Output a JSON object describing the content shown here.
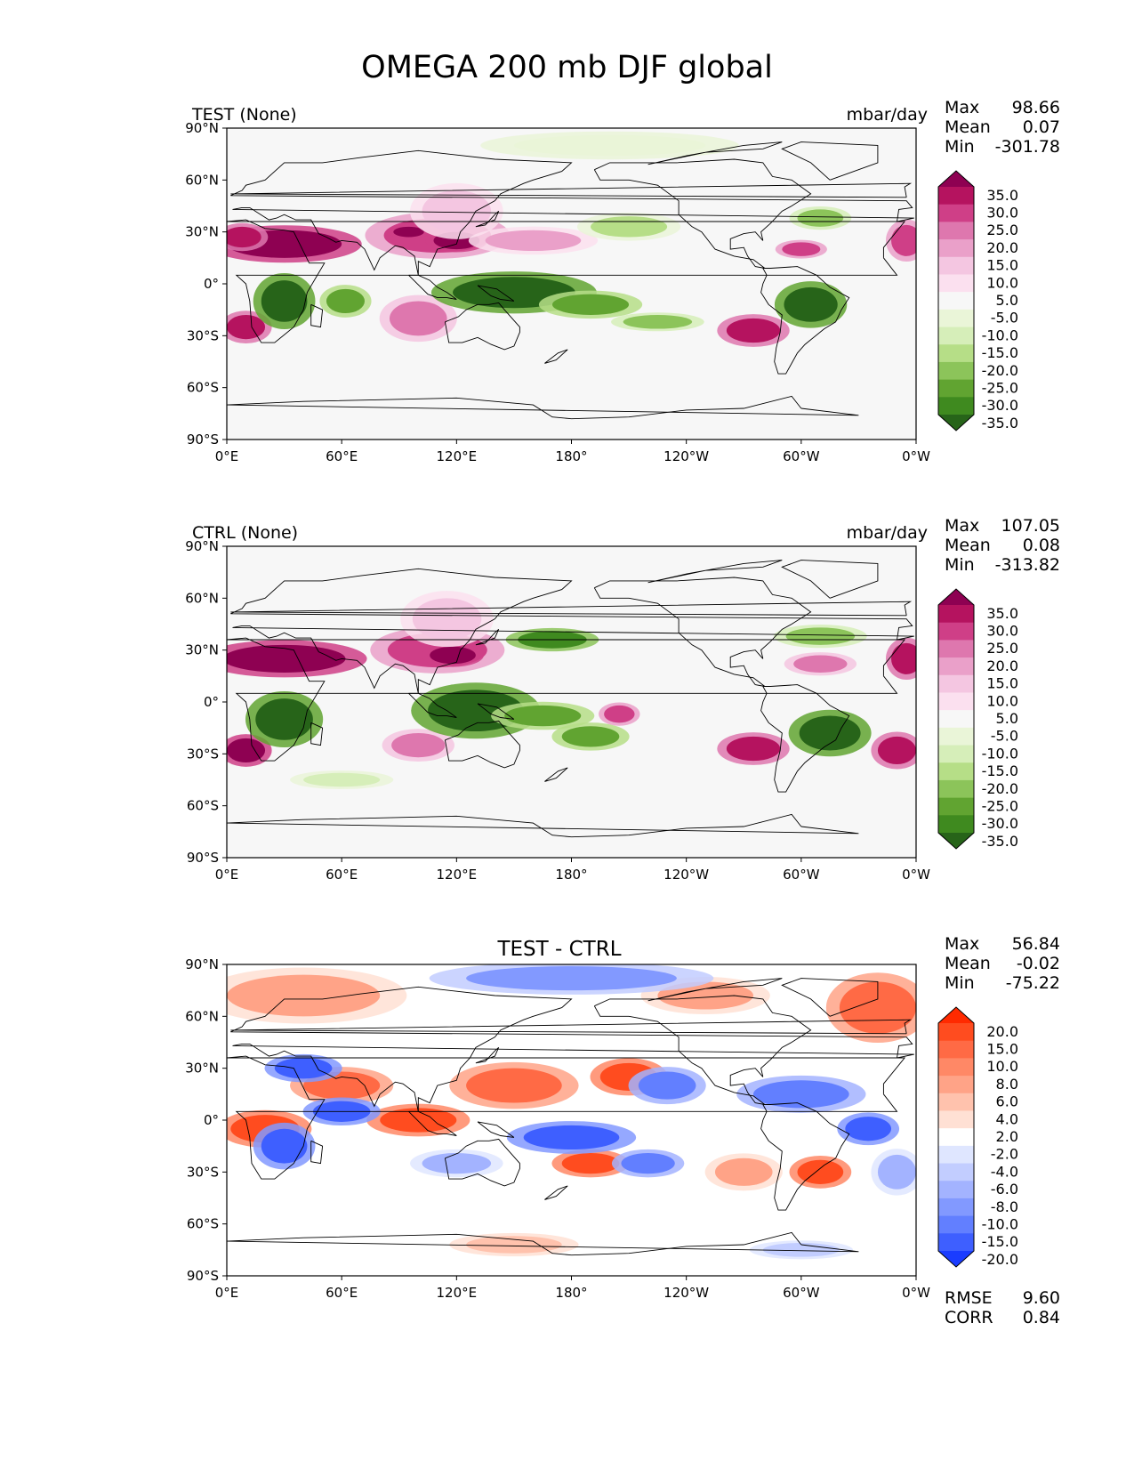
{
  "figure_title": "OMEGA 200 mb DJF global",
  "chart_data": [
    {
      "type": "heatmap",
      "title_left": "TEST (None)",
      "units": "mbar/day",
      "stats": [
        {
          "label": "Max",
          "value": "98.66"
        },
        {
          "label": "Mean",
          "value": "0.07"
        },
        {
          "label": "Min",
          "value": "-301.78"
        }
      ],
      "colorbar": {
        "levels": [
          "35.0",
          "30.0",
          "25.0",
          "20.0",
          "15.0",
          "10.0",
          "5.0",
          "-5.0",
          "-10.0",
          "-15.0",
          "-20.0",
          "-25.0",
          "-30.0",
          "-35.0"
        ],
        "colors": [
          "#8e0152",
          "#b5135f",
          "#cf3f87",
          "#de77ae",
          "#eaa0c9",
          "#f4c6e1",
          "#fbe0ef",
          "#f7f7f7",
          "#eaf5d8",
          "#d6eeb9",
          "#b6de87",
          "#8cc45a",
          "#61a431",
          "#3f8a1f",
          "#276419"
        ]
      },
      "ylim": [
        -90,
        90
      ],
      "xlim": [
        0,
        360
      ],
      "yticks": [
        "90°N",
        "60°N",
        "30°N",
        "0°",
        "30°S",
        "60°S",
        "90°S"
      ],
      "xticks": [
        "0°E",
        "60°E",
        "120°E",
        "180°",
        "120°W",
        "60°W",
        "0°W"
      ],
      "background": "#f7f7f7",
      "blobs": [
        {
          "lon": 30,
          "lat": 23,
          "rx": 30,
          "ry": 8,
          "level": 0
        },
        {
          "lon": 8,
          "lat": 27,
          "rx": 10,
          "ry": 6,
          "level": 1
        },
        {
          "lon": 110,
          "lat": 28,
          "rx": 28,
          "ry": 10,
          "level": 2
        },
        {
          "lon": 120,
          "lat": 25,
          "rx": 12,
          "ry": 5,
          "level": 0
        },
        {
          "lon": 95,
          "lat": 30,
          "rx": 8,
          "ry": 3,
          "level": 0
        },
        {
          "lon": 120,
          "lat": 42,
          "rx": 18,
          "ry": 12,
          "level": 5
        },
        {
          "lon": 160,
          "lat": 25,
          "rx": 25,
          "ry": 6,
          "level": 4
        },
        {
          "lon": 10,
          "lat": -25,
          "rx": 10,
          "ry": 7,
          "level": 1
        },
        {
          "lon": 100,
          "lat": -20,
          "rx": 15,
          "ry": 10,
          "level": 3
        },
        {
          "lon": 275,
          "lat": -27,
          "rx": 14,
          "ry": 7,
          "level": 1
        },
        {
          "lon": 300,
          "lat": 20,
          "rx": 10,
          "ry": 4,
          "level": 2
        },
        {
          "lon": 355,
          "lat": 25,
          "rx": 8,
          "ry": 9,
          "level": 2
        },
        {
          "lon": 30,
          "lat": -10,
          "rx": 12,
          "ry": 12,
          "level": 14
        },
        {
          "lon": 62,
          "lat": -10,
          "rx": 10,
          "ry": 7,
          "level": 12
        },
        {
          "lon": 150,
          "lat": -5,
          "rx": 32,
          "ry": 9,
          "level": 14
        },
        {
          "lon": 190,
          "lat": -12,
          "rx": 20,
          "ry": 6,
          "level": 12
        },
        {
          "lon": 225,
          "lat": -22,
          "rx": 18,
          "ry": 4,
          "level": 11
        },
        {
          "lon": 305,
          "lat": -12,
          "rx": 14,
          "ry": 10,
          "level": 14
        },
        {
          "lon": 210,
          "lat": 33,
          "rx": 20,
          "ry": 6,
          "level": 10
        },
        {
          "lon": 310,
          "lat": 38,
          "rx": 12,
          "ry": 5,
          "level": 11
        },
        {
          "lon": 200,
          "lat": 80,
          "rx": 50,
          "ry": 6,
          "level": 8
        }
      ]
    },
    {
      "type": "heatmap",
      "title_left": "CTRL (None)",
      "units": "mbar/day",
      "stats": [
        {
          "label": "Max",
          "value": "107.05"
        },
        {
          "label": "Mean",
          "value": "0.08"
        },
        {
          "label": "Min",
          "value": "-313.82"
        }
      ],
      "colorbar": {
        "levels": [
          "35.0",
          "30.0",
          "25.0",
          "20.0",
          "15.0",
          "10.0",
          "5.0",
          "-5.0",
          "-10.0",
          "-15.0",
          "-20.0",
          "-25.0",
          "-30.0",
          "-35.0"
        ],
        "colors": [
          "#8e0152",
          "#b5135f",
          "#cf3f87",
          "#de77ae",
          "#eaa0c9",
          "#f4c6e1",
          "#fbe0ef",
          "#f7f7f7",
          "#eaf5d8",
          "#d6eeb9",
          "#b6de87",
          "#8cc45a",
          "#61a431",
          "#3f8a1f",
          "#276419"
        ]
      },
      "ylim": [
        -90,
        90
      ],
      "xlim": [
        0,
        360
      ],
      "yticks": [
        "90°N",
        "60°N",
        "30°N",
        "0°",
        "30°S",
        "60°S",
        "90°S"
      ],
      "xticks": [
        "0°E",
        "60°E",
        "120°E",
        "180°",
        "120°W",
        "60°W",
        "0°W"
      ],
      "background": "#f7f7f7",
      "blobs": [
        {
          "lon": 30,
          "lat": 25,
          "rx": 32,
          "ry": 8,
          "level": 0
        },
        {
          "lon": 110,
          "lat": 30,
          "rx": 26,
          "ry": 10,
          "level": 2
        },
        {
          "lon": 118,
          "lat": 27,
          "rx": 12,
          "ry": 5,
          "level": 0
        },
        {
          "lon": 115,
          "lat": 48,
          "rx": 18,
          "ry": 12,
          "level": 5
        },
        {
          "lon": 10,
          "lat": -28,
          "rx": 10,
          "ry": 7,
          "level": 0
        },
        {
          "lon": 100,
          "lat": -25,
          "rx": 14,
          "ry": 7,
          "level": 3
        },
        {
          "lon": 205,
          "lat": -7,
          "rx": 8,
          "ry": 5,
          "level": 2
        },
        {
          "lon": 275,
          "lat": -27,
          "rx": 14,
          "ry": 7,
          "level": 1
        },
        {
          "lon": 310,
          "lat": 22,
          "rx": 14,
          "ry": 5,
          "level": 3
        },
        {
          "lon": 355,
          "lat": 25,
          "rx": 8,
          "ry": 9,
          "level": 1
        },
        {
          "lon": 350,
          "lat": -28,
          "rx": 10,
          "ry": 8,
          "level": 1
        },
        {
          "lon": 30,
          "lat": -10,
          "rx": 15,
          "ry": 12,
          "level": 14
        },
        {
          "lon": 130,
          "lat": -5,
          "rx": 25,
          "ry": 12,
          "level": 14
        },
        {
          "lon": 165,
          "lat": -8,
          "rx": 20,
          "ry": 6,
          "level": 12
        },
        {
          "lon": 190,
          "lat": -20,
          "rx": 15,
          "ry": 6,
          "level": 12
        },
        {
          "lon": 170,
          "lat": 36,
          "rx": 18,
          "ry": 5,
          "level": 13
        },
        {
          "lon": 315,
          "lat": -18,
          "rx": 16,
          "ry": 10,
          "level": 14
        },
        {
          "lon": 310,
          "lat": 38,
          "rx": 18,
          "ry": 5,
          "level": 11
        },
        {
          "lon": 60,
          "lat": -45,
          "rx": 20,
          "ry": 4,
          "level": 9
        }
      ]
    },
    {
      "type": "heatmap",
      "title_center": "TEST - CTRL",
      "stats": [
        {
          "label": "Max",
          "value": "56.84"
        },
        {
          "label": "Mean",
          "value": "-0.02"
        },
        {
          "label": "Min",
          "value": "-75.22"
        }
      ],
      "extra_stats": [
        {
          "label": "RMSE",
          "value": "9.60"
        },
        {
          "label": "CORR",
          "value": "0.84"
        }
      ],
      "colorbar": {
        "levels": [
          "20.0",
          "15.0",
          "10.0",
          "8.0",
          "6.0",
          "4.0",
          "2.0",
          "-2.0",
          "-4.0",
          "-6.0",
          "-8.0",
          "-10.0",
          "-15.0",
          "-20.0"
        ],
        "colors": [
          "#ff2a00",
          "#ff4c1f",
          "#ff6a45",
          "#ff8866",
          "#ffa387",
          "#ffc2ad",
          "#ffe0d4",
          "#ffffff",
          "#dfe6ff",
          "#c2cdff",
          "#a3b3ff",
          "#8299ff",
          "#627fff",
          "#3e5fff",
          "#1a3cff"
        ]
      },
      "ylim": [
        -90,
        90
      ],
      "xlim": [
        0,
        360
      ],
      "yticks": [
        "90°N",
        "60°N",
        "30°N",
        "0°",
        "30°S",
        "60°S",
        "90°S"
      ],
      "xticks": [
        "0°E",
        "60°E",
        "120°E",
        "180°",
        "120°W",
        "60°W",
        "0°W"
      ],
      "background": "#ffffff",
      "blobs": [
        {
          "lon": 40,
          "lat": 72,
          "rx": 40,
          "ry": 12,
          "level": 4
        },
        {
          "lon": 340,
          "lat": 65,
          "rx": 20,
          "ry": 15,
          "level": 2
        },
        {
          "lon": 250,
          "lat": 72,
          "rx": 25,
          "ry": 8,
          "level": 4
        },
        {
          "lon": 180,
          "lat": 82,
          "rx": 55,
          "ry": 7,
          "level": 11
        },
        {
          "lon": 150,
          "lat": 20,
          "rx": 25,
          "ry": 10,
          "level": 2
        },
        {
          "lon": 210,
          "lat": 25,
          "rx": 15,
          "ry": 8,
          "level": 1
        },
        {
          "lon": 60,
          "lat": 20,
          "rx": 20,
          "ry": 8,
          "level": 2
        },
        {
          "lon": 20,
          "lat": -5,
          "rx": 18,
          "ry": 8,
          "level": 1
        },
        {
          "lon": 100,
          "lat": 0,
          "rx": 20,
          "ry": 7,
          "level": 1
        },
        {
          "lon": 190,
          "lat": -25,
          "rx": 15,
          "ry": 6,
          "level": 1
        },
        {
          "lon": 310,
          "lat": -30,
          "rx": 12,
          "ry": 7,
          "level": 1
        },
        {
          "lon": 270,
          "lat": -30,
          "rx": 15,
          "ry": 8,
          "level": 4
        },
        {
          "lon": 60,
          "lat": 5,
          "rx": 15,
          "ry": 6,
          "level": 13
        },
        {
          "lon": 30,
          "lat": -15,
          "rx": 12,
          "ry": 10,
          "level": 13
        },
        {
          "lon": 180,
          "lat": -10,
          "rx": 25,
          "ry": 7,
          "level": 13
        },
        {
          "lon": 220,
          "lat": -25,
          "rx": 14,
          "ry": 6,
          "level": 12
        },
        {
          "lon": 230,
          "lat": 20,
          "rx": 15,
          "ry": 8,
          "level": 12
        },
        {
          "lon": 300,
          "lat": 15,
          "rx": 25,
          "ry": 8,
          "level": 12
        },
        {
          "lon": 335,
          "lat": -5,
          "rx": 12,
          "ry": 7,
          "level": 13
        },
        {
          "lon": 40,
          "lat": 30,
          "rx": 15,
          "ry": 6,
          "level": 13
        },
        {
          "lon": 350,
          "lat": -30,
          "rx": 10,
          "ry": 10,
          "level": 10
        },
        {
          "lon": 120,
          "lat": -25,
          "rx": 18,
          "ry": 6,
          "level": 10
        },
        {
          "lon": 300,
          "lat": -75,
          "rx": 20,
          "ry": 4,
          "level": 9
        },
        {
          "lon": 150,
          "lat": -72,
          "rx": 25,
          "ry": 5,
          "level": 5
        }
      ]
    }
  ]
}
